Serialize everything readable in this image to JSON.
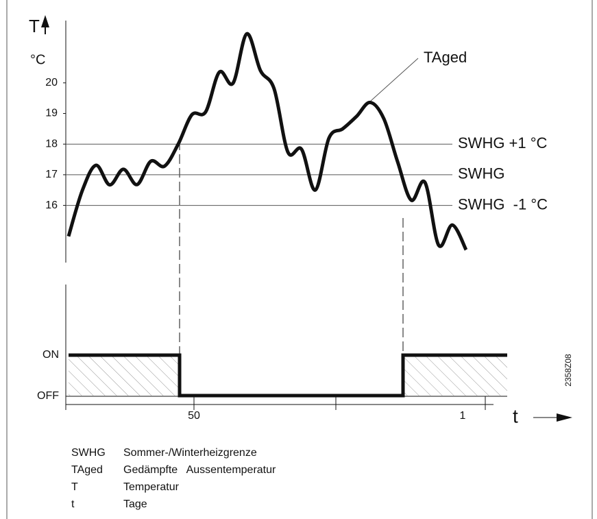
{
  "chart_data": {
    "type": "line",
    "y_label": "T",
    "y_unit": "°C",
    "ylim": [
      14.2,
      22.1
    ],
    "yticks": [
      16,
      17,
      18,
      19,
      20
    ],
    "reference_lines": [
      {
        "value": 18,
        "label": "SWHG +1 °C"
      },
      {
        "value": 17,
        "label": "SWHG"
      },
      {
        "value": 16,
        "label": "SWHG  -1 °C"
      }
    ],
    "series": [
      {
        "name": "TAged",
        "color": "#111111",
        "values": [
          14.99,
          16.48,
          17.31,
          16.67,
          17.18,
          16.68,
          17.44,
          17.28,
          18.0,
          18.96,
          19.05,
          20.35,
          19.99,
          21.6,
          20.4,
          19.8,
          17.74,
          17.83,
          16.5,
          18.2,
          18.5,
          18.9,
          19.36,
          18.83,
          17.43,
          16.17,
          16.75,
          14.7,
          15.36,
          14.55
        ]
      }
    ],
    "switch_labels": [
      "ON",
      "OFF"
    ],
    "x_label": "t",
    "x_tick_labels": [
      "50",
      "1"
    ],
    "code": "2358Z08",
    "legend": [
      [
        "SWHG",
        "Sommer-/Winterheizgrenze"
      ],
      [
        "TAged",
        "Gedämpfte   Aussentemperatur"
      ],
      [
        "T",
        "Temperatur"
      ],
      [
        "t",
        "Tage"
      ]
    ]
  }
}
